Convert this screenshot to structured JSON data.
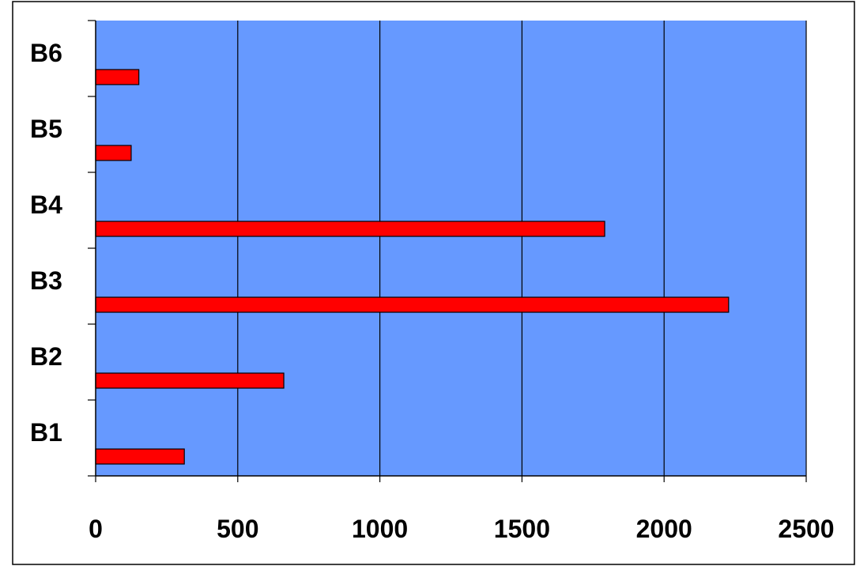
{
  "chart_data": {
    "type": "bar",
    "orientation": "horizontal",
    "title": "",
    "xlabel": "",
    "ylabel": "",
    "categories": [
      "B1",
      "B2",
      "B3",
      "B4",
      "B5",
      "B6"
    ],
    "values": [
      312,
      662,
      2227,
      1791,
      125,
      152
    ],
    "xlim": [
      0,
      2500
    ],
    "xticks": [
      0,
      500,
      1000,
      1500,
      2000,
      2500
    ],
    "xtick_labels": [
      "0",
      "500",
      "1000",
      "1500",
      "2000",
      "2500"
    ],
    "grid": "vertical",
    "legend": "none",
    "colors": {
      "plot_background": "#6699FF",
      "bar_fill": "#FF0000",
      "bar_stroke": "#000000",
      "grid": "#000000",
      "frame": "#000000"
    }
  }
}
